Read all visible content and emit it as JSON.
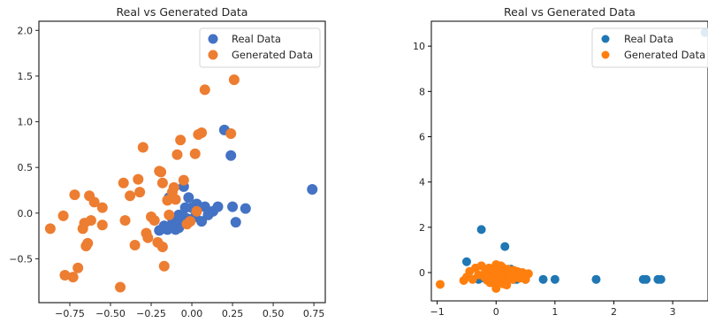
{
  "chart_data": [
    {
      "type": "scatter",
      "title": "Real vs Generated Data",
      "xlabel": "",
      "ylabel": "",
      "xlim": [
        -0.94,
        0.82
      ],
      "ylim": [
        -0.98,
        2.1
      ],
      "xticks": [
        -0.75,
        -0.5,
        -0.25,
        0.0,
        0.25,
        0.5,
        0.75
      ],
      "xtick_labels": [
        "−0.75",
        "−0.50",
        "−0.25",
        "0.00",
        "0.25",
        "0.50",
        "0.75"
      ],
      "yticks": [
        -0.5,
        0.0,
        0.5,
        1.0,
        1.5,
        2.0
      ],
      "ytick_labels": [
        "−0.5",
        "0.0",
        "0.5",
        "1.0",
        "1.5",
        "2.0"
      ],
      "grid": false,
      "legend_position": "top-right",
      "series": [
        {
          "name": "Real Data",
          "color": "#4472c4",
          "points": [
            [
              -0.2,
              -0.19
            ],
            [
              -0.18,
              -0.17
            ],
            [
              -0.16,
              -0.16
            ],
            [
              -0.15,
              -0.18
            ],
            [
              -0.13,
              -0.15
            ],
            [
              -0.12,
              -0.12
            ],
            [
              -0.11,
              -0.1
            ],
            [
              -0.1,
              -0.08
            ],
            [
              -0.12,
              -0.06
            ],
            [
              -0.09,
              -0.14
            ],
            [
              -0.08,
              -0.16
            ],
            [
              -0.07,
              -0.12
            ],
            [
              -0.06,
              -0.09
            ],
            [
              -0.05,
              -0.04
            ],
            [
              -0.03,
              -0.06
            ],
            [
              -0.04,
              0.06
            ],
            [
              -0.02,
              0.17
            ],
            [
              0.0,
              0.06
            ],
            [
              0.02,
              -0.04
            ],
            [
              0.03,
              0.1
            ],
            [
              0.06,
              -0.09
            ],
            [
              0.1,
              -0.02
            ],
            [
              0.13,
              0.02
            ],
            [
              0.16,
              0.07
            ],
            [
              0.2,
              0.91
            ],
            [
              0.24,
              0.63
            ],
            [
              0.25,
              0.07
            ],
            [
              0.27,
              -0.1
            ],
            [
              0.33,
              0.05
            ],
            [
              0.74,
              0.26
            ],
            [
              -0.14,
              0.17
            ],
            [
              -0.05,
              0.29
            ],
            [
              -0.17,
              -0.14
            ],
            [
              -0.1,
              -0.18
            ],
            [
              0.08,
              0.07
            ],
            [
              -0.08,
              -0.02
            ]
          ]
        },
        {
          "name": "Generated Data",
          "color": "#ed7d31",
          "points": [
            [
              -0.87,
              -0.17
            ],
            [
              -0.79,
              -0.03
            ],
            [
              -0.78,
              -0.68
            ],
            [
              -0.73,
              -0.7
            ],
            [
              -0.72,
              0.2
            ],
            [
              -0.7,
              -0.6
            ],
            [
              -0.67,
              -0.17
            ],
            [
              -0.66,
              -0.11
            ],
            [
              -0.65,
              -0.36
            ],
            [
              -0.64,
              -0.33
            ],
            [
              -0.63,
              0.19
            ],
            [
              -0.62,
              -0.08
            ],
            [
              -0.6,
              0.12
            ],
            [
              -0.55,
              -0.13
            ],
            [
              -0.55,
              0.06
            ],
            [
              -0.44,
              -0.81
            ],
            [
              -0.42,
              0.33
            ],
            [
              -0.41,
              -0.08
            ],
            [
              -0.38,
              0.19
            ],
            [
              -0.35,
              -0.35
            ],
            [
              -0.33,
              0.37
            ],
            [
              -0.32,
              0.23
            ],
            [
              -0.3,
              0.72
            ],
            [
              -0.28,
              -0.22
            ],
            [
              -0.27,
              -0.27
            ],
            [
              -0.25,
              -0.04
            ],
            [
              -0.23,
              -0.08
            ],
            [
              -0.21,
              -0.32
            ],
            [
              -0.2,
              0.46
            ],
            [
              -0.19,
              0.45
            ],
            [
              -0.18,
              -0.37
            ],
            [
              -0.18,
              0.33
            ],
            [
              -0.17,
              -0.58
            ],
            [
              -0.14,
              -0.02
            ],
            [
              -0.12,
              0.23
            ],
            [
              -0.11,
              0.28
            ],
            [
              -0.09,
              0.64
            ],
            [
              -0.07,
              0.8
            ],
            [
              -0.05,
              0.36
            ],
            [
              -0.03,
              -0.12
            ],
            [
              -0.01,
              -0.09
            ],
            [
              0.02,
              0.65
            ],
            [
              0.04,
              0.86
            ],
            [
              0.06,
              0.88
            ],
            [
              0.08,
              1.35
            ],
            [
              0.24,
              0.87
            ],
            [
              0.26,
              1.46
            ],
            [
              -0.1,
              0.15
            ],
            [
              -0.15,
              0.14
            ],
            [
              0.03,
              0.02
            ]
          ]
        }
      ]
    },
    {
      "type": "scatter",
      "title": "Real vs Generated Data",
      "xlabel": "",
      "ylabel": "",
      "xlim": [
        -1.1,
        3.6
      ],
      "ylim": [
        -1.25,
        11.1
      ],
      "xticks": [
        -1,
        0,
        1,
        2,
        3
      ],
      "xtick_labels": [
        "−1",
        "0",
        "1",
        "2",
        "3"
      ],
      "yticks": [
        0,
        2,
        4,
        6,
        8,
        10
      ],
      "ytick_labels": [
        "0",
        "2",
        "4",
        "6",
        "8",
        "10"
      ],
      "grid": false,
      "legend_position": "top-right",
      "series": [
        {
          "name": "Real Data",
          "color": "#1f77b4",
          "points": [
            [
              -0.5,
              0.48
            ],
            [
              -0.3,
              -0.3
            ],
            [
              -0.25,
              1.9
            ],
            [
              -0.2,
              -0.25
            ],
            [
              -0.1,
              -0.3
            ],
            [
              0.0,
              0.25
            ],
            [
              0.05,
              -0.2
            ],
            [
              0.1,
              0.2
            ],
            [
              0.15,
              1.15
            ],
            [
              0.2,
              -0.25
            ],
            [
              0.25,
              0.15
            ],
            [
              0.3,
              -0.3
            ],
            [
              0.35,
              -0.3
            ],
            [
              0.4,
              0.0
            ],
            [
              0.5,
              -0.3
            ],
            [
              0.8,
              -0.3
            ],
            [
              1.0,
              -0.3
            ],
            [
              1.7,
              -0.3
            ],
            [
              2.5,
              -0.3
            ],
            [
              2.55,
              -0.3
            ],
            [
              2.75,
              -0.3
            ],
            [
              2.8,
              -0.3
            ],
            [
              3.55,
              10.6
            ]
          ]
        },
        {
          "name": "Generated Data",
          "color": "#ff7f0e",
          "points": [
            [
              -0.95,
              -0.52
            ],
            [
              -0.55,
              -0.35
            ],
            [
              -0.5,
              -0.2
            ],
            [
              -0.45,
              0.05
            ],
            [
              -0.4,
              -0.3
            ],
            [
              -0.35,
              0.2
            ],
            [
              -0.3,
              -0.1
            ],
            [
              -0.25,
              0.3
            ],
            [
              -0.2,
              -0.2
            ],
            [
              -0.18,
              0.1
            ],
            [
              -0.15,
              -0.35
            ],
            [
              -0.12,
              0.2
            ],
            [
              -0.1,
              -0.45
            ],
            [
              -0.08,
              0.0
            ],
            [
              -0.05,
              0.15
            ],
            [
              -0.03,
              -0.25
            ],
            [
              0.0,
              0.35
            ],
            [
              0.02,
              -0.5
            ],
            [
              0.05,
              0.1
            ],
            [
              0.07,
              -0.15
            ],
            [
              0.1,
              0.25
            ],
            [
              0.12,
              -0.35
            ],
            [
              0.15,
              0.05
            ],
            [
              0.18,
              -0.55
            ],
            [
              0.2,
              0.15
            ],
            [
              0.22,
              -0.2
            ],
            [
              0.25,
              0.0
            ],
            [
              0.28,
              -0.3
            ],
            [
              0.3,
              0.1
            ],
            [
              0.33,
              -0.15
            ],
            [
              0.36,
              0.05
            ],
            [
              0.4,
              -0.25
            ],
            [
              0.45,
              0.0
            ],
            [
              0.5,
              -0.3
            ],
            [
              0.55,
              -0.05
            ],
            [
              0.0,
              -0.7
            ],
            [
              -0.05,
              0.0
            ],
            [
              0.08,
              0.3
            ],
            [
              -0.15,
              -0.1
            ],
            [
              0.12,
              -0.5
            ]
          ]
        }
      ]
    }
  ]
}
